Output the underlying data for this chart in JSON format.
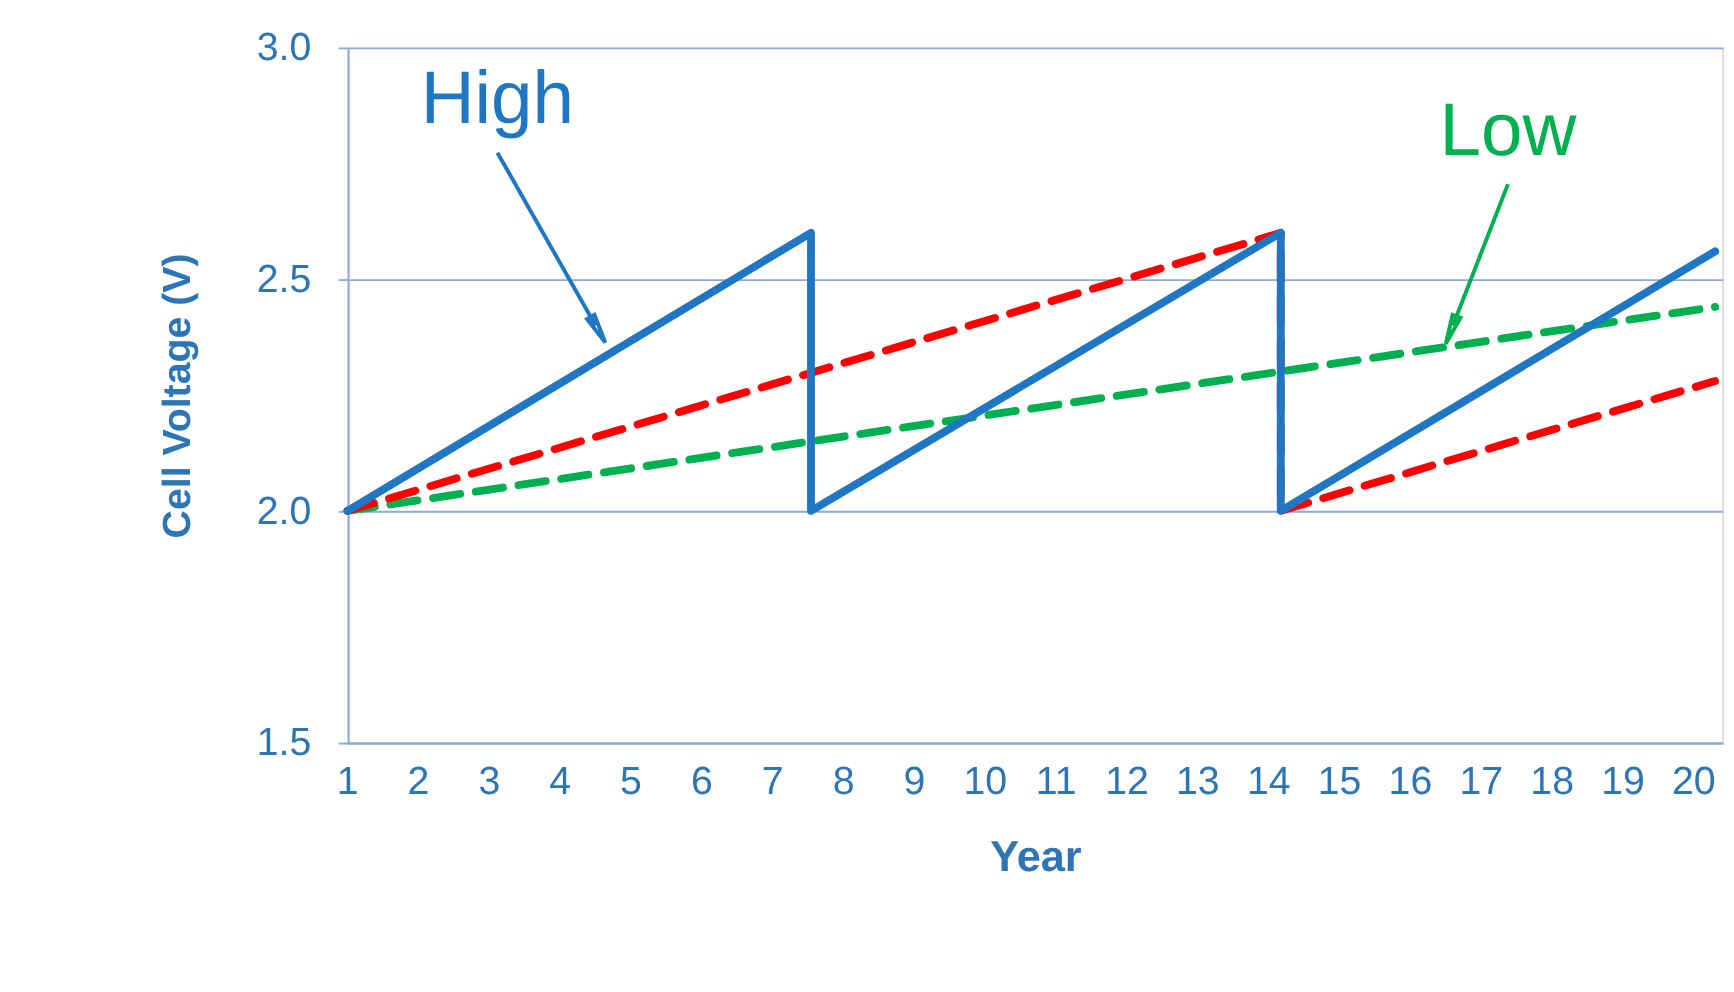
{
  "chart_data": {
    "type": "line",
    "xlabel": "Year",
    "ylabel": "Cell Voltage (V)",
    "xlim": [
      1,
      20.4
    ],
    "xticks": [
      1,
      2,
      3,
      4,
      5,
      6,
      7,
      8,
      9,
      10,
      11,
      12,
      13,
      14,
      15,
      16,
      17,
      18,
      19,
      20
    ],
    "ylim": [
      1.5,
      3.0
    ],
    "yticks": [
      {
        "value": 1.5,
        "label": "1.5"
      },
      {
        "value": 2.0,
        "label": "2.0"
      },
      {
        "value": 2.5,
        "label": "2.5"
      },
      {
        "value": 3.0,
        "label": "3.0"
      }
    ],
    "grid": "y",
    "marker": "none",
    "series": [
      {
        "color": "#1f77c4",
        "line_style": "solid",
        "x": [
          1,
          7.54,
          7.54,
          14.17,
          14.17,
          20.3
        ],
        "values": [
          2.0,
          2.6,
          2.0,
          2.6,
          2.0,
          2.56
        ]
      },
      {
        "color": "#ff0000",
        "line_style": "dashed",
        "x": [
          1,
          14.17,
          14.17,
          20.3
        ],
        "values": [
          2.0,
          2.6,
          2.0,
          2.28
        ]
      },
      {
        "color": "#00b050",
        "line_style": "dashed",
        "x": [
          1,
          7.54,
          20.3
        ],
        "values": [
          2.0,
          2.15,
          2.44
        ]
      }
    ],
    "annotations": [
      {
        "text": "High",
        "x": 4.5,
        "y": 2.4
      },
      {
        "text": "Low",
        "x": 16.6,
        "y": 2.4
      }
    ]
  }
}
